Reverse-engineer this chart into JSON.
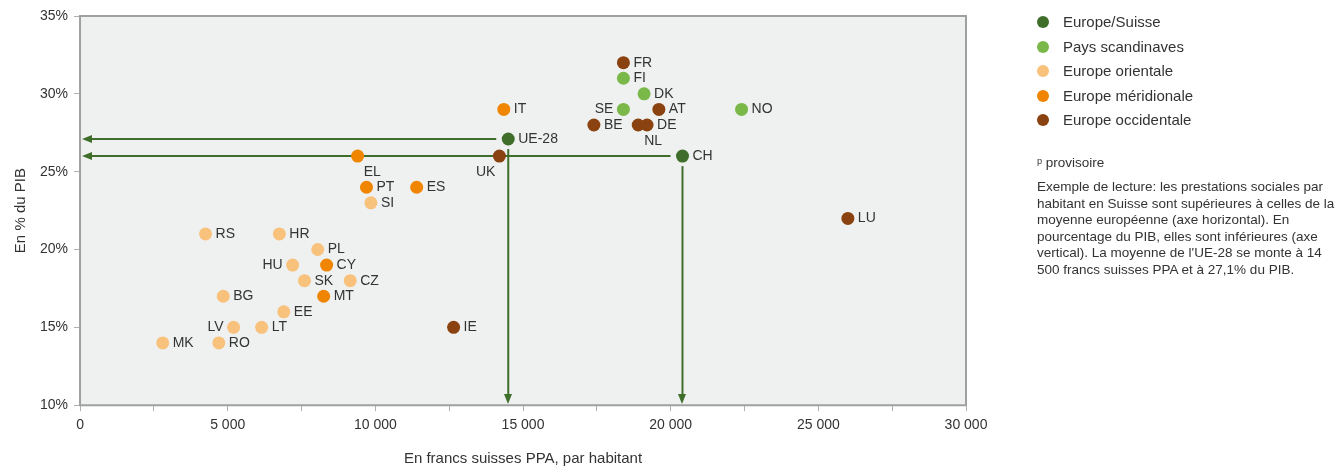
{
  "chart_data": {
    "type": "scatter",
    "xlabel": "En francs suisses PPA, par habitant",
    "ylabel": "En % du PIB",
    "xlim": [
      0,
      30000
    ],
    "xticks": [
      0,
      {
        "value": 2500,
        "label": null
      },
      {
        "value": 5000,
        "label": "5 000"
      },
      {
        "value": 7500,
        "label": null
      },
      {
        "value": 10000,
        "label": "10 000"
      },
      {
        "value": 12500,
        "label": null
      },
      {
        "value": 15000,
        "label": "15 000"
      },
      {
        "value": 17500,
        "label": null
      },
      {
        "value": 20000,
        "label": "20 000"
      },
      {
        "value": 22500,
        "label": null
      },
      {
        "value": 25000,
        "label": "25 000"
      },
      {
        "value": 27500,
        "label": null
      },
      {
        "value": 30000,
        "label": "30 000"
      }
    ],
    "ylim": [
      10,
      35
    ],
    "yticks": [
      {
        "value": 10,
        "label": "10%"
      },
      {
        "value": 15,
        "label": "15%"
      },
      {
        "value": 20,
        "label": "20%"
      },
      {
        "value": 25,
        "label": "25%"
      },
      {
        "value": 30,
        "label": "30%"
      },
      {
        "value": 35,
        "label": "35%"
      }
    ],
    "grid": false,
    "legend": "top right",
    "marker": "circle",
    "series": [
      {
        "name": "Europe/Suisse",
        "color": "#3f6e2b",
        "x": [
          14500,
          20400
        ],
        "values": [
          27.1,
          26.0
        ]
      },
      {
        "name": "Pays scandinaves",
        "color": "#7bb84a",
        "x": [
          18400,
          19100,
          18400,
          22400
        ],
        "values": [
          31.0,
          30.0,
          29.0,
          29.0
        ]
      },
      {
        "name": "Europe orientale",
        "color": "#f8c17c",
        "x": [
          9850,
          6750,
          4250,
          8050,
          7200,
          7600,
          9150,
          4850,
          6900,
          5200,
          6150,
          2800,
          4700
        ],
        "values": [
          23.0,
          21.0,
          21.0,
          20.0,
          19.0,
          18.0,
          18.0,
          17.0,
          16.0,
          15.0,
          15.0,
          14.0,
          14.0
        ]
      },
      {
        "name": "Europe méridionale",
        "color": "#ef8500",
        "x": [
          14350,
          9400,
          9700,
          11400,
          8350,
          8250
        ],
        "values": [
          29.0,
          26.0,
          24.0,
          24.0,
          19.0,
          17.0
        ]
      },
      {
        "name": "Europe occidentale",
        "color": "#8a4310",
        "x": [
          18400,
          19600,
          17400,
          18900,
          19200,
          14200,
          12650,
          26000
        ],
        "values": [
          32.0,
          29.0,
          28.0,
          28.0,
          28.0,
          26.0,
          15.0,
          22.0
        ]
      }
    ],
    "ref_lines": [
      {
        "axis": "y",
        "value": 27.1,
        "color": "#3f6e2b"
      },
      {
        "axis": "y",
        "value": 26.0,
        "color": "#3f6e2b"
      },
      {
        "axis": "x",
        "value": 14500,
        "color": "#3f6e2b"
      },
      {
        "axis": "x",
        "value": 20400,
        "color": "#3f6e2b"
      }
    ],
    "annotations": [
      {
        "text": "UE-28",
        "x": 14500,
        "y": 27.1
      },
      {
        "text": "CH",
        "x": 20400,
        "y": 26.0
      },
      {
        "text": "FI",
        "x": 18400,
        "y": 31.0
      },
      {
        "text": "DK",
        "x": 19100,
        "y": 30.0
      },
      {
        "text": "SE",
        "x": 18400,
        "y": 29.0
      },
      {
        "text": "NO",
        "x": 22400,
        "y": 29.0
      },
      {
        "text": "SI",
        "x": 9850,
        "y": 23.0
      },
      {
        "text": "HR",
        "x": 6750,
        "y": 21.0
      },
      {
        "text": "RS",
        "x": 4250,
        "y": 21.0
      },
      {
        "text": "PL",
        "x": 8050,
        "y": 20.0
      },
      {
        "text": "HU",
        "x": 7200,
        "y": 19.0
      },
      {
        "text": "SK",
        "x": 7600,
        "y": 18.0
      },
      {
        "text": "CZ",
        "x": 9150,
        "y": 18.0
      },
      {
        "text": "BG",
        "x": 4850,
        "y": 17.0
      },
      {
        "text": "EE",
        "x": 6900,
        "y": 16.0
      },
      {
        "text": "LV",
        "x": 5200,
        "y": 15.0
      },
      {
        "text": "LT",
        "x": 6150,
        "y": 15.0
      },
      {
        "text": "MK",
        "x": 2800,
        "y": 14.0
      },
      {
        "text": "RO",
        "x": 4700,
        "y": 14.0
      },
      {
        "text": "IT",
        "x": 14350,
        "y": 29.0
      },
      {
        "text": "EL",
        "x": 9400,
        "y": 26.0
      },
      {
        "text": "PT",
        "x": 9700,
        "y": 24.0
      },
      {
        "text": "ES",
        "x": 11400,
        "y": 24.0
      },
      {
        "text": "CY",
        "x": 8350,
        "y": 19.0
      },
      {
        "text": "MT",
        "x": 8250,
        "y": 17.0
      },
      {
        "text": "FR",
        "x": 18400,
        "y": 32.0
      },
      {
        "text": "AT",
        "x": 19600,
        "y": 29.0
      },
      {
        "text": "BE",
        "x": 17400,
        "y": 28.0
      },
      {
        "text": "NL",
        "x": 18900,
        "y": 28.0
      },
      {
        "text": "DE",
        "x": 19200,
        "y": 28.0
      },
      {
        "text": "UK",
        "x": 14200,
        "y": 26.0
      },
      {
        "text": "IE",
        "x": 12650,
        "y": 15.0
      },
      {
        "text": "LU",
        "x": 26000,
        "y": 22.0
      },
      "ᵖ provisoire",
      "Exemple de lecture: les prestations sociales par habitant en Suisse sont supérieures à celles de la moyenne européenne (axe horizontal). En pourcentage du PIB, elles sont inférieures (axe vertical). La moyenne de l'UE-28 se monte à 14 500 francs suisses PPA et à 27,1% du PIB."
    ]
  }
}
